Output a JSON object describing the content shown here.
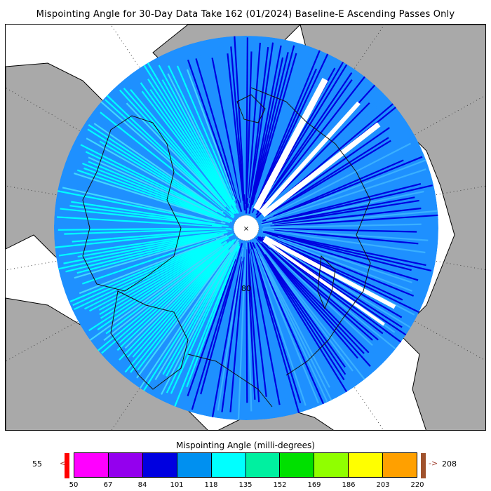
{
  "title": "Mispointing Angle for 30-Day Data Take 162 (01/2024) Baseline-E Ascending Passes Only",
  "map": {
    "projection": "north-polar-stereographic",
    "latitude_label": "80",
    "pole_marker": "×",
    "land_color": "#a9a9a9",
    "ocean_color": "#ffffff"
  },
  "colorbar": {
    "title": "Mispointing Angle (milli-degrees)",
    "min_value": "55",
    "max_value": "208",
    "under_arrow": "<",
    "over_arrow": "->",
    "under_color": "#ff0000",
    "over_color": "#a0522d",
    "ticks": [
      "50",
      "67",
      "84",
      "101",
      "118",
      "135",
      "152",
      "169",
      "186",
      "203",
      "220"
    ],
    "colors": [
      "#ff00ff",
      "#9400ee",
      "#0000e0",
      "#0090f0",
      "#00ffff",
      "#00f0a0",
      "#00e000",
      "#90ff00",
      "#ffff00",
      "#ffa000"
    ]
  }
}
